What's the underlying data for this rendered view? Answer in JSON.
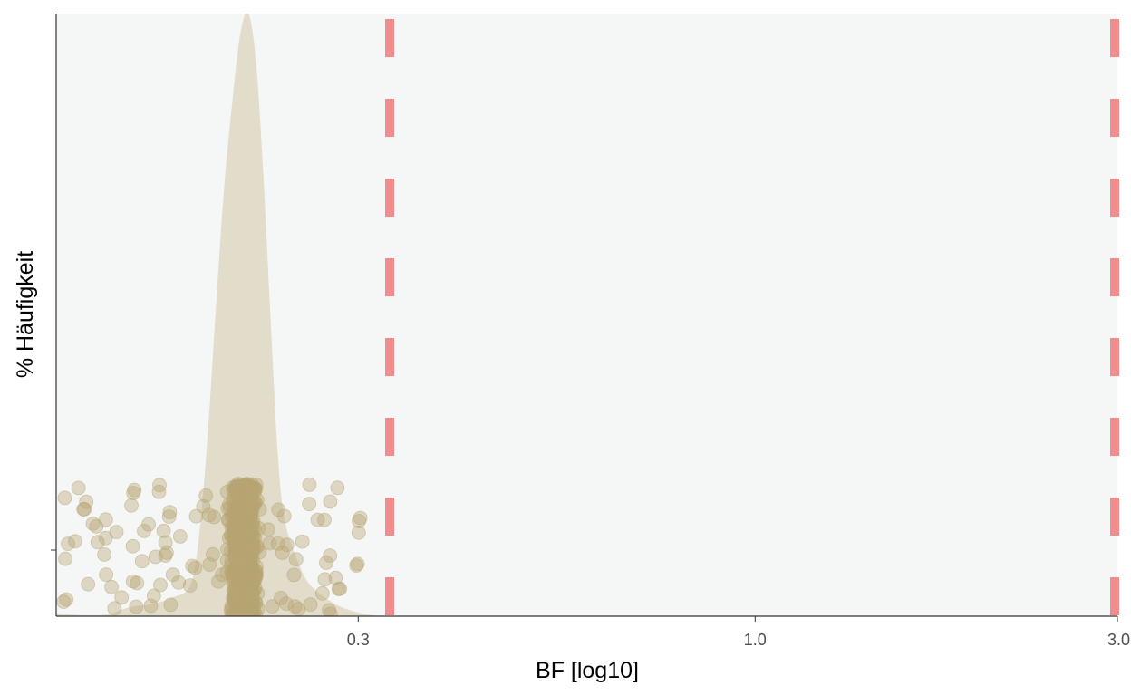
{
  "chart_data": {
    "type": "density-jitter",
    "title": "",
    "xlabel": "BF [log10]",
    "ylabel": "% Häufigkeit",
    "x_scale": "log10",
    "xlim": [
      0.12,
      3.0
    ],
    "x_ticks": [
      {
        "value": 0.3,
        "label": "0.3"
      },
      {
        "value": 1.0,
        "label": "1.0"
      },
      {
        "value": 3.0,
        "label": "3.0"
      }
    ],
    "reference_lines": [
      {
        "x": 0.33,
        "style": "dashed",
        "color": "#f28b8b"
      },
      {
        "x": 3.0,
        "style": "dashed",
        "color": "#f28b8b"
      }
    ],
    "density": {
      "x": [
        0.12,
        0.13,
        0.14,
        0.15,
        0.16,
        0.17,
        0.18,
        0.185,
        0.19,
        0.195,
        0.2,
        0.205,
        0.21,
        0.215,
        0.22,
        0.225,
        0.23,
        0.235,
        0.24,
        0.25,
        0.26,
        0.28,
        0.3,
        0.32
      ],
      "y": [
        0.5,
        0.2,
        0.3,
        1.5,
        2.0,
        3.0,
        5.0,
        13.0,
        30.0,
        52.0,
        72.0,
        86.0,
        97.0,
        100.0,
        92.0,
        73.0,
        49.0,
        27.0,
        16.0,
        9.0,
        5.0,
        2.0,
        0.6,
        0.0
      ],
      "color": "#e2dccb"
    },
    "points": {
      "color": "#b7a473",
      "opacity": 0.4,
      "x_range": [
        0.12,
        0.305
      ],
      "center": 0.212,
      "y_band": [
        0,
        22
      ]
    },
    "grid": false,
    "panel_background": "#f5f7f7"
  }
}
